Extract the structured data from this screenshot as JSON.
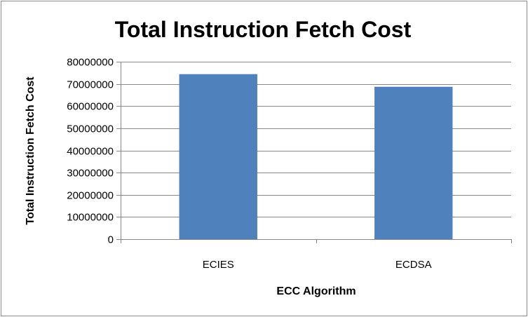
{
  "chart_data": {
    "type": "bar",
    "title": "Total Instruction Fetch Cost",
    "xlabel": "ECC Algorithm",
    "ylabel": "Total Instruction Fetch Cost",
    "categories": [
      "ECIES",
      "ECDSA"
    ],
    "values": [
      74400000,
      68700000
    ],
    "ylim": [
      0,
      80000000
    ],
    "yticks": [
      "0",
      "10000000",
      "20000000",
      "30000000",
      "40000000",
      "50000000",
      "60000000",
      "70000000",
      "80000000"
    ],
    "grid": true,
    "legend": "none",
    "bar_color": "#4f81bd"
  }
}
